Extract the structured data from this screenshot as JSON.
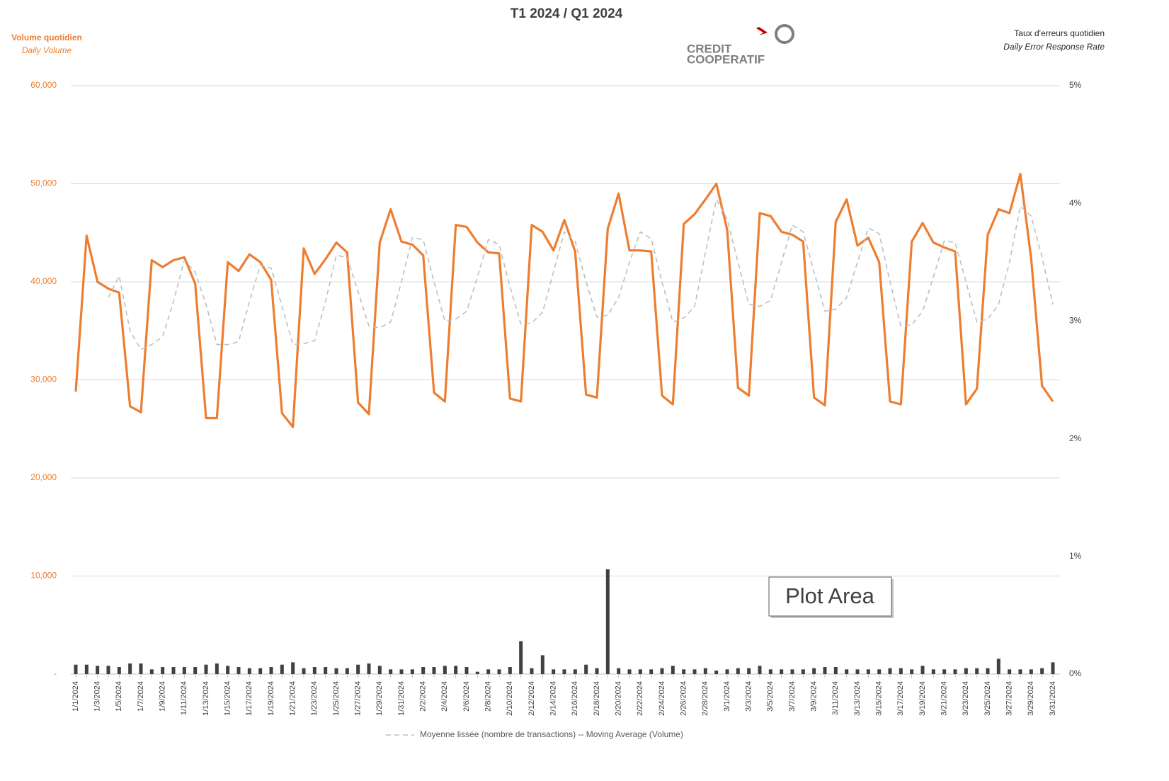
{
  "chart_data": {
    "type": "line",
    "title": "T1 2024 / Q1 2024",
    "y_label": "Volume quotidien",
    "y_sublabel": "Daily Volume",
    "y2_label": "Taux d'erreurs quotidien",
    "y2_sublabel": "Daily Error Response Rate",
    "logo": {
      "line1": "CREDIT",
      "line2": "COOPERATIF"
    },
    "tooltip": "Plot Area",
    "grid": true,
    "legend": "bottom",
    "ylim": [
      0,
      60000
    ],
    "yticks": [
      {
        "value": 0,
        "label": "-"
      },
      {
        "value": 10000,
        "label": "10,000"
      },
      {
        "value": 20000,
        "label": "20,000"
      },
      {
        "value": 30000,
        "label": "30,000"
      },
      {
        "value": 40000,
        "label": "40,000"
      },
      {
        "value": 50000,
        "label": "50,000"
      },
      {
        "value": 60000,
        "label": "60,000"
      }
    ],
    "y2lim": [
      0,
      5
    ],
    "y2ticks": [
      {
        "value": 0,
        "label": "0%"
      },
      {
        "value": 1,
        "label": "1%"
      },
      {
        "value": 2,
        "label": "2%"
      },
      {
        "value": 3,
        "label": "3%"
      },
      {
        "value": 4,
        "label": "4%"
      },
      {
        "value": 5,
        "label": "5%"
      }
    ],
    "categories": [
      "1/1/2024",
      null,
      "1/3/2024",
      null,
      "1/5/2024",
      null,
      "1/7/2024",
      null,
      "1/9/2024",
      null,
      "1/11/2024",
      null,
      "1/13/2024",
      null,
      "1/15/2024",
      null,
      "1/17/2024",
      null,
      "1/19/2024",
      null,
      "1/21/2024",
      null,
      "1/23/2024",
      null,
      "1/25/2024",
      null,
      "1/27/2024",
      null,
      "1/29/2024",
      null,
      "1/31/2024",
      null,
      "2/2/2024",
      null,
      "2/4/2024",
      null,
      "2/6/2024",
      null,
      "2/8/2024",
      null,
      "2/10/2024",
      null,
      "2/12/2024",
      null,
      "2/14/2024",
      null,
      "2/16/2024",
      null,
      "2/18/2024",
      null,
      "2/20/2024",
      null,
      "2/22/2024",
      null,
      "2/24/2024",
      null,
      "2/26/2024",
      null,
      "2/28/2024",
      null,
      "3/1/2024",
      null,
      "3/3/2024",
      null,
      "3/5/2024",
      null,
      "3/7/2024",
      null,
      "3/9/2024",
      null,
      "3/11/2024",
      null,
      "3/13/2024",
      null,
      "3/15/2024",
      null,
      "3/17/2024",
      null,
      "3/19/2024",
      null,
      "3/21/2024",
      null,
      "3/23/2024",
      null,
      "3/25/2024",
      null,
      "3/27/2024",
      null,
      "3/29/2024",
      null,
      "3/31/2024"
    ],
    "series": [
      {
        "type": "line",
        "color": "#ED7D31",
        "values": [
          28800,
          44700,
          40000,
          39300,
          38900,
          27300,
          26700,
          42200,
          41500,
          42200,
          42500,
          39800,
          26100,
          26100,
          42000,
          41100,
          42800,
          42000,
          40200,
          26600,
          25200,
          43400,
          40800,
          42300,
          44000,
          43000,
          27700,
          26500,
          44000,
          47400,
          44100,
          43800,
          42700,
          28700,
          27800,
          45800,
          45600,
          44000,
          43000,
          42900,
          28100,
          27800,
          45800,
          45100,
          43200,
          46300,
          43100,
          28500,
          28200,
          45400,
          49000,
          43200,
          43200,
          43100,
          28400,
          27500,
          45900,
          46900,
          48400,
          50000,
          45300,
          29200,
          28400,
          47000,
          46700,
          45100,
          44800,
          44100,
          28200,
          27400,
          46100,
          48400,
          43700,
          44500,
          42000,
          27800,
          27500,
          44100,
          46000,
          44000,
          43500,
          43100,
          27500,
          29100,
          44800,
          47400,
          47000,
          51000,
          42400,
          29400,
          27800
        ]
      },
      {
        "type": "line",
        "dashed": true,
        "name": "Moyenne lissée (nombre de transactions) -- Moving Average (Volume)",
        "color": "#BFBFBF",
        "values": [
          null,
          null,
          null,
          38400,
          40600,
          35000,
          33100,
          33600,
          34400,
          38000,
          42200,
          41000,
          37700,
          33600,
          33600,
          33900,
          38000,
          41700,
          41400,
          37500,
          33600,
          33700,
          34000,
          38000,
          42700,
          42500,
          39000,
          35500,
          35300,
          35900,
          40000,
          44500,
          44300,
          40000,
          36000,
          36200,
          37000,
          40500,
          44300,
          43800,
          39500,
          35700,
          35800,
          36900,
          41000,
          45100,
          44100,
          40000,
          36400,
          36600,
          38400,
          42000,
          45100,
          44400,
          40000,
          35900,
          36300,
          37500,
          43000,
          48400,
          46400,
          42000,
          37700,
          37500,
          38100,
          42000,
          45800,
          45100,
          41000,
          37000,
          37200,
          38400,
          42000,
          45500,
          44900,
          40000,
          35500,
          35600,
          37000,
          40500,
          44200,
          44000,
          40000,
          35900,
          36200,
          37700,
          42000,
          47700,
          46700,
          42500,
          37700
        ]
      },
      {
        "type": "bar",
        "axis": "y2",
        "color": "#404040",
        "values": [
          0.08,
          0.08,
          0.07,
          0.07,
          0.06,
          0.09,
          0.09,
          0.04,
          0.06,
          0.06,
          0.06,
          0.06,
          0.08,
          0.09,
          0.07,
          0.06,
          0.05,
          0.05,
          0.06,
          0.08,
          0.1,
          0.05,
          0.06,
          0.06,
          0.05,
          0.05,
          0.08,
          0.09,
          0.07,
          0.04,
          0.04,
          0.04,
          0.06,
          0.06,
          0.07,
          0.07,
          0.06,
          0.02,
          0.04,
          0.04,
          0.06,
          0.28,
          0.05,
          0.16,
          0.04,
          0.04,
          0.04,
          0.08,
          0.05,
          0.89,
          0.05,
          0.04,
          0.04,
          0.04,
          0.05,
          0.07,
          0.04,
          0.04,
          0.05,
          0.03,
          0.04,
          0.05,
          0.05,
          0.07,
          0.04,
          0.04,
          0.04,
          0.04,
          0.05,
          0.06,
          0.06,
          0.04,
          0.04,
          0.04,
          0.04,
          0.05,
          0.05,
          0.04,
          0.07,
          0.04,
          0.04,
          0.04,
          0.05,
          0.05,
          0.05,
          0.13,
          0.04,
          0.04,
          0.04,
          0.05,
          0.1
        ]
      }
    ]
  }
}
